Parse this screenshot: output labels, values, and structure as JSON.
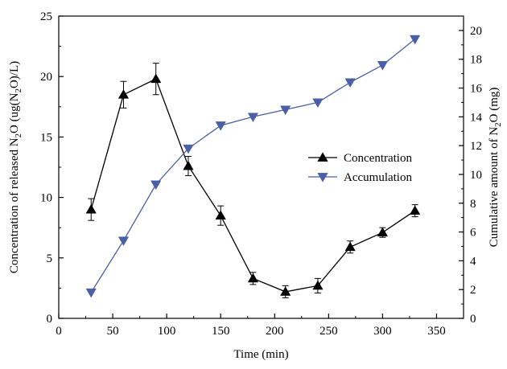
{
  "chart_data": {
    "type": "line",
    "xlabel": "Time (min)",
    "ylabel_left_parts": [
      "Concentration of released N",
      "2",
      "O (ug(N",
      "2",
      "O)/L)"
    ],
    "ylabel_right_parts": [
      "Cumulative amount of N",
      "2",
      "O (mg)"
    ],
    "x_range": [
      0,
      375
    ],
    "y_left_range": [
      0,
      25
    ],
    "y_right_range": [
      0,
      21
    ],
    "x_ticks": [
      0,
      50,
      100,
      150,
      200,
      250,
      300,
      350
    ],
    "y_left_ticks": [
      0,
      5,
      10,
      15,
      20,
      25
    ],
    "y_right_ticks": [
      0,
      2,
      4,
      6,
      8,
      10,
      12,
      14,
      16,
      18,
      20
    ],
    "x": [
      30,
      60,
      90,
      120,
      150,
      180,
      210,
      240,
      270,
      300,
      330
    ],
    "series": [
      {
        "name": "Concentration",
        "axis": "left",
        "marker": "triangle-up",
        "color": "#000000",
        "values": [
          9.0,
          18.5,
          19.8,
          12.6,
          8.5,
          3.3,
          2.2,
          2.7,
          5.9,
          7.1,
          8.9
        ],
        "error": [
          0.9,
          1.1,
          1.3,
          0.8,
          0.8,
          0.5,
          0.5,
          0.6,
          0.5,
          0.4,
          0.5
        ]
      },
      {
        "name": "Accumulation",
        "axis": "right",
        "marker": "triangle-down",
        "color": "#4a5fa5",
        "values": [
          1.8,
          5.4,
          9.3,
          11.8,
          13.4,
          14.0,
          14.5,
          15.0,
          16.4,
          17.6,
          19.4
        ]
      }
    ],
    "legend_position": "right-middle",
    "grid": false
  }
}
